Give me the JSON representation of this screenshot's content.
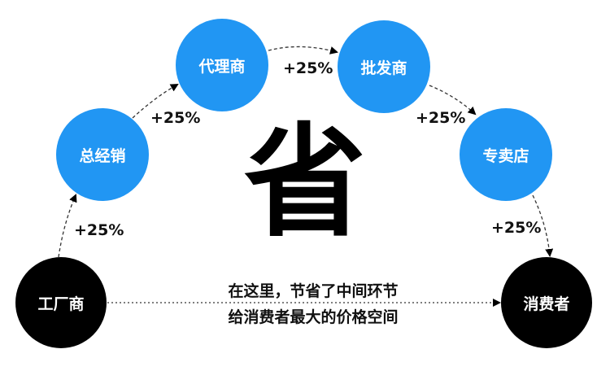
{
  "colors": {
    "channel": "#2196f3",
    "endpoint": "#000000"
  },
  "nodes": {
    "factory": "工厂商",
    "general_distributor": "总经销",
    "agent": "代理商",
    "wholesaler": "批发商",
    "store": "专卖店",
    "consumer": "消费者"
  },
  "markups": [
    "+25%",
    "+25%",
    "+25%",
    "+25%",
    "+25%"
  ],
  "center_char": "省",
  "message": {
    "line1": "在这里，节省了中间环节",
    "line2": "给消费者最大的价格空间"
  }
}
